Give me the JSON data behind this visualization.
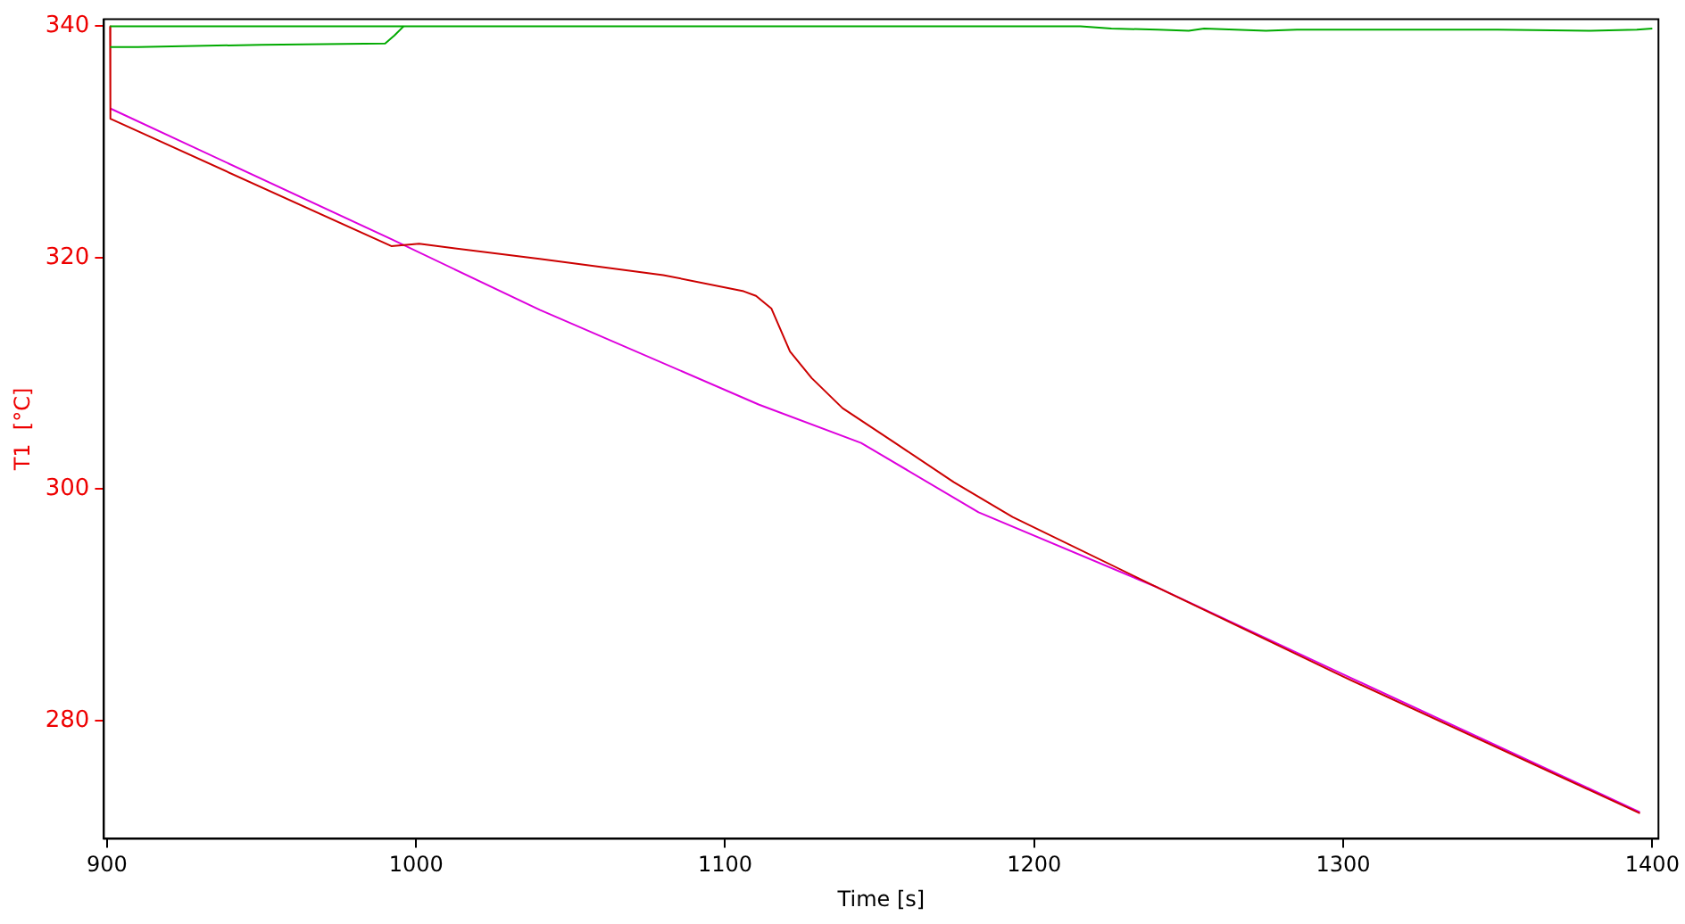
{
  "chart_data": {
    "type": "line",
    "xlabel": "Time [s]",
    "ylabel": "T1  [°C]",
    "xlim": [
      899,
      1402
    ],
    "ylim": [
      269.8,
      340.6
    ],
    "xticks": [
      900,
      1000,
      1100,
      1200,
      1300,
      1400
    ],
    "yticks": [
      280,
      300,
      320,
      340
    ],
    "grid": false,
    "legend": false,
    "marker": "none",
    "line_style": "solid",
    "series": [
      {
        "color": "#00aa00",
        "x": [
          901,
          1215,
          1225,
          1240,
          1250,
          1255,
          1265,
          1275,
          1285,
          1300,
          1350,
          1380,
          1395,
          1400
        ],
        "values": [
          340,
          340,
          339.8,
          339.7,
          339.6,
          339.8,
          339.7,
          339.6,
          339.7,
          339.7,
          339.7,
          339.6,
          339.7,
          339.8
        ]
      },
      {
        "color": "#00aa00",
        "x": [
          901,
          910,
          950,
          990,
          993,
          996
        ],
        "values": [
          338.2,
          338.2,
          338.4,
          338.5,
          339.2,
          340
        ]
      },
      {
        "color": "#cc0000",
        "x": [
          901,
          901.1,
          992,
          1001,
          1040,
          1080,
          1106,
          1110,
          1115,
          1121,
          1128,
          1138,
          1155,
          1174,
          1193,
          1240,
          1300,
          1396
        ],
        "values": [
          340,
          332,
          321,
          321.2,
          319.9,
          318.5,
          317.1,
          316.7,
          315.6,
          311.9,
          309.6,
          307,
          304,
          300.6,
          297.6,
          291.5,
          283.8,
          272
        ]
      },
      {
        "color": "#dd00dd",
        "x": [
          901,
          992,
          1040,
          1111,
          1144,
          1182,
          1240,
          1300,
          1396
        ],
        "values": [
          332.9,
          321.6,
          315.5,
          307.3,
          304,
          298,
          291.5,
          284,
          272.1
        ]
      }
    ]
  }
}
